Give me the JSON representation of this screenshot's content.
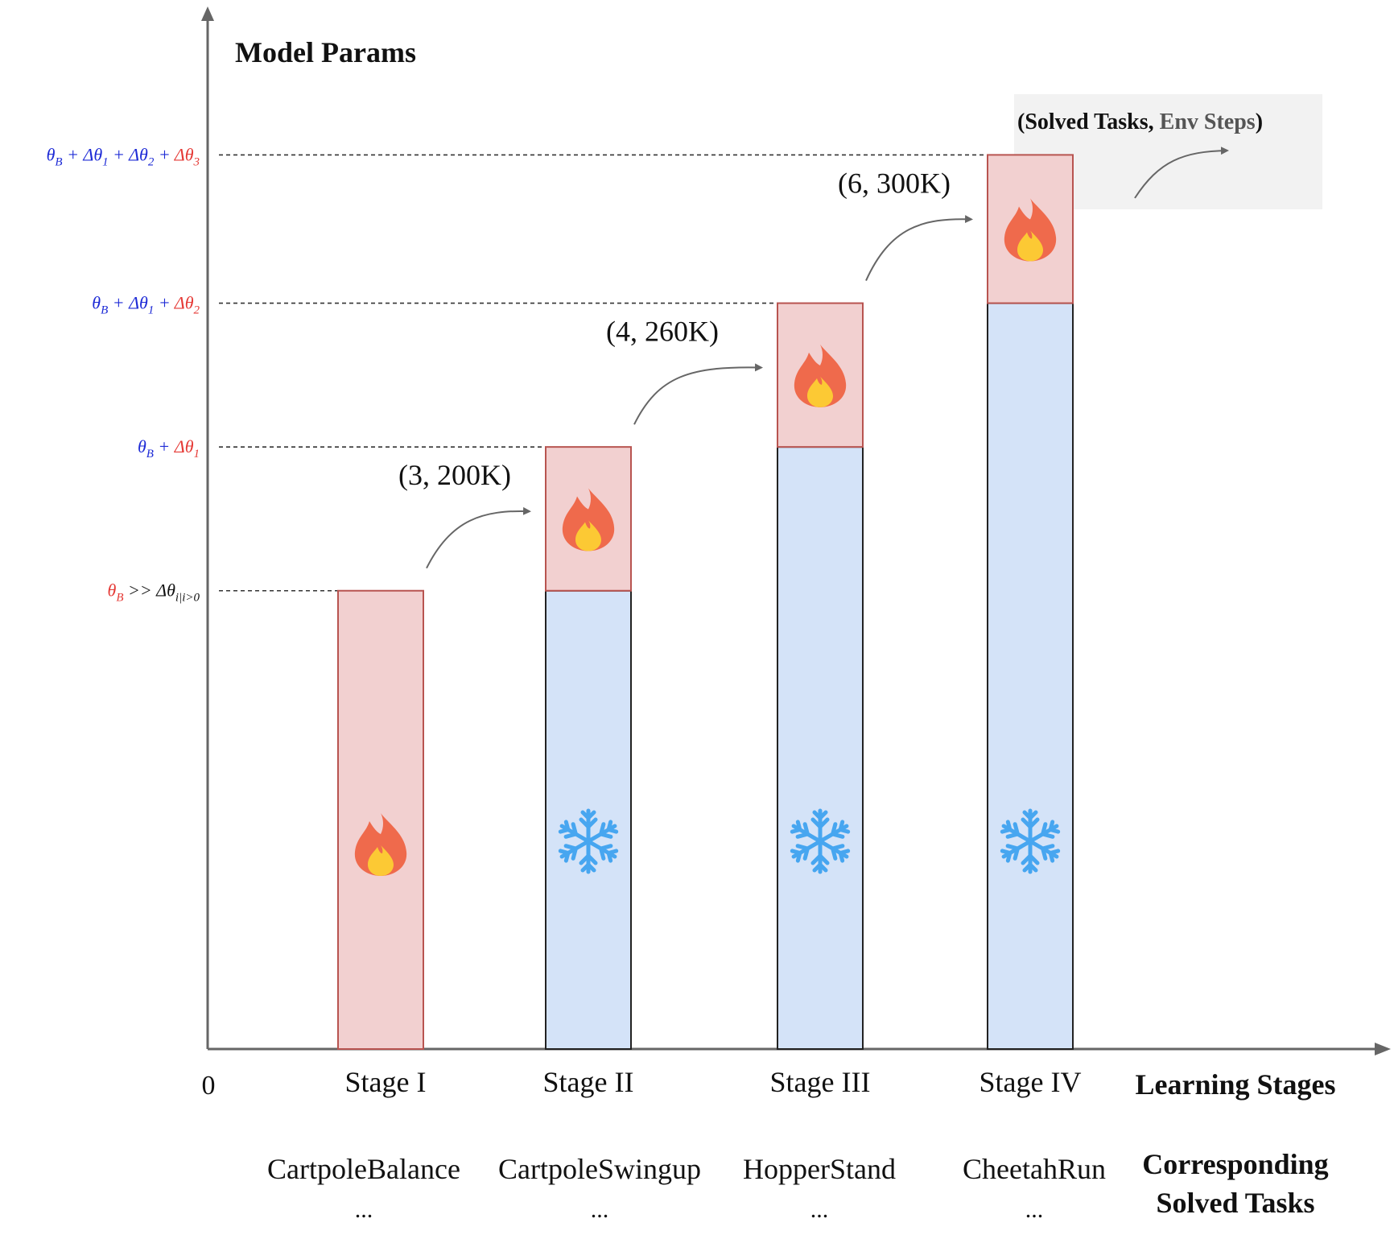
{
  "chart_data": {
    "type": "bar",
    "title": "",
    "ylabel": "Model Params",
    "xlabel": "Learning Stages",
    "origin_label": "0",
    "tasks_axis_label_line1": "Corresponding",
    "tasks_axis_label_line2": "Solved Tasks",
    "legend": {
      "text_solved": "(Solved Tasks, ",
      "text_steps": "Env Steps",
      "text_close": ")",
      "color_solved": "#111111",
      "color_steps": "#555555"
    },
    "ylim": [
      0,
      1050
    ],
    "y_levels": [
      {
        "name": "level-0",
        "value": 510,
        "parts": [
          {
            "t": "θ",
            "c": "base",
            "sub": "B"
          },
          {
            "t": " >> Δθ",
            "c": "plain",
            "sub": "i|i>0"
          }
        ]
      },
      {
        "name": "level-1",
        "value": 670,
        "parts": [
          {
            "t": "θ",
            "c": "frozen",
            "sub": "B"
          },
          {
            "t": " + ",
            "c": "frozen"
          },
          {
            "t": "Δθ",
            "c": "new",
            "sub": "1"
          }
        ]
      },
      {
        "name": "level-2",
        "value": 830,
        "parts": [
          {
            "t": "θ",
            "c": "frozen",
            "sub": "B"
          },
          {
            "t": " + Δθ",
            "c": "frozen",
            "sub": "1"
          },
          {
            "t": " + ",
            "c": "frozen"
          },
          {
            "t": "Δθ",
            "c": "new",
            "sub": "2"
          }
        ]
      },
      {
        "name": "level-3",
        "value": 995,
        "parts": [
          {
            "t": "θ",
            "c": "frozen",
            "sub": "B"
          },
          {
            "t": " + Δθ",
            "c": "frozen",
            "sub": "1"
          },
          {
            "t": " + Δθ",
            "c": "frozen",
            "sub": "2"
          },
          {
            "t": " + ",
            "c": "frozen"
          },
          {
            "t": "Δθ",
            "c": "new",
            "sub": "3"
          }
        ]
      }
    ],
    "categories": [
      "Stage I",
      "Stage II",
      "Stage III",
      "Stage IV"
    ],
    "tasks": [
      "CartpoleBalance",
      "CartpoleSwingup",
      "HopperStand",
      "CheetahRun"
    ],
    "tasks_more": "...",
    "series": [
      {
        "name": "frozen",
        "color": "#d4e3f8",
        "stroke": "#222222",
        "icon": "snowflake-icon",
        "values": [
          0,
          510,
          670,
          830
        ]
      },
      {
        "name": "trainable",
        "color": "#f2d0d0",
        "stroke": "#b85450",
        "icon": "fire-icon",
        "values": [
          510,
          160,
          160,
          165
        ]
      }
    ],
    "transitions": [
      {
        "from": "Stage I",
        "to": "Stage II",
        "label": "(3, 200K)"
      },
      {
        "from": "Stage II",
        "to": "Stage III",
        "label": "(4, 260K)"
      },
      {
        "from": "Stage III",
        "to": "Stage IV",
        "label": "(6, 300K)"
      }
    ],
    "colors": {
      "axis": "#666666",
      "frozen_label": "#1e2bd6",
      "new_label": "#e53935",
      "legend_bg": "#f2f2f2"
    }
  }
}
